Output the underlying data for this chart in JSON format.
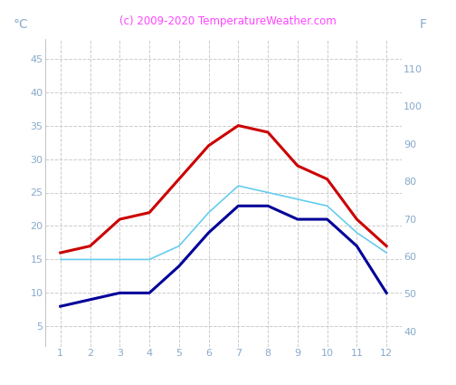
{
  "months": [
    1,
    2,
    3,
    4,
    5,
    6,
    7,
    8,
    9,
    10,
    11,
    12
  ],
  "red_line": [
    16,
    17,
    21,
    22,
    27,
    32,
    35,
    34,
    29,
    27,
    21,
    17
  ],
  "dark_blue_line": [
    8,
    9,
    10,
    10,
    14,
    19,
    23,
    23,
    21,
    21,
    17,
    10
  ],
  "light_blue_line": [
    15,
    15,
    15,
    15,
    17,
    22,
    26,
    25,
    24,
    23,
    19,
    16
  ],
  "red_color": "#cc0000",
  "dark_blue_color": "#000099",
  "light_blue_color": "#66ccee",
  "title": "(c) 2009-2020 TemperatureWeather.com",
  "title_color": "#ff44ff",
  "ylabel_left": "°C",
  "ylabel_right": "F",
  "ylabel_color": "#88aacc",
  "tick_color": "#88aacc",
  "grid_color": "#cccccc",
  "background_color": "#ffffff",
  "ylim_left": [
    2,
    48
  ],
  "ylim_right": [
    36,
    118
  ],
  "yticks_left": [
    5,
    10,
    15,
    20,
    25,
    30,
    35,
    40,
    45
  ],
  "yticks_right": [
    40,
    50,
    60,
    70,
    80,
    90,
    100,
    110
  ],
  "xlim": [
    0.5,
    12.5
  ],
  "xticks": [
    1,
    2,
    3,
    4,
    5,
    6,
    7,
    8,
    9,
    10,
    11,
    12
  ],
  "linewidth": 2.2,
  "light_blue_linewidth": 1.2,
  "figsize": [
    5.04,
    4.25
  ],
  "dpi": 100
}
